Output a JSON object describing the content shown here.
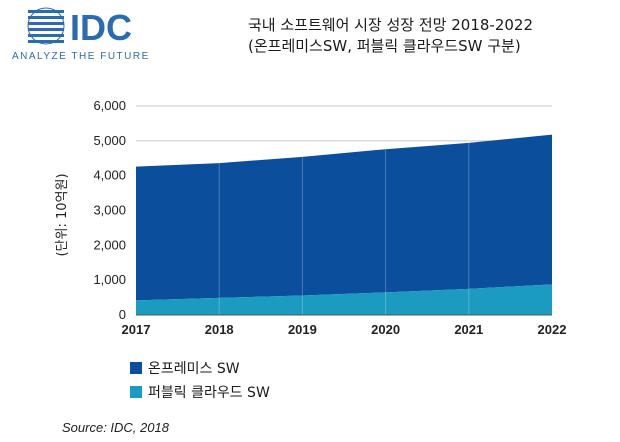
{
  "logo": {
    "text": "IDC",
    "tagline": "ANALYZE THE FUTURE"
  },
  "header": {
    "title_line1": "국내 소프트웨어 시장 성장 전망 2018-2022",
    "title_line2": "(온프레미스SW, 퍼블릭 클라우드SW 구분)"
  },
  "source": "Source: IDC, 2018",
  "colors": {
    "onprem": "#0b4e9b",
    "cloud": "#1b9bbf",
    "logo_blue": "#2b6cb0"
  },
  "chart_data": {
    "type": "area",
    "stacked": true,
    "x": [
      "2017",
      "2018",
      "2019",
      "2020",
      "2021",
      "2022"
    ],
    "series": [
      {
        "name": "퍼블릭 클라우드 SW",
        "values": [
          420,
          490,
          560,
          650,
          750,
          880
        ]
      },
      {
        "name": "온프레미스 SW",
        "values": [
          3840,
          3870,
          3980,
          4110,
          4190,
          4300
        ]
      }
    ],
    "totals": [
      4260,
      4360,
      4540,
      4760,
      4940,
      5180
    ],
    "ylabel": "(단위: 10억원)",
    "xlabel": "",
    "ylim": [
      0,
      6000
    ],
    "yticks": [
      "0",
      "1,000",
      "2,000",
      "3,000",
      "4,000",
      "5,000",
      "6,000"
    ],
    "grid": true,
    "legend_position": "bottom-left",
    "legend": [
      "온프레미스 SW",
      "퍼블릭 클라우드 SW"
    ]
  }
}
